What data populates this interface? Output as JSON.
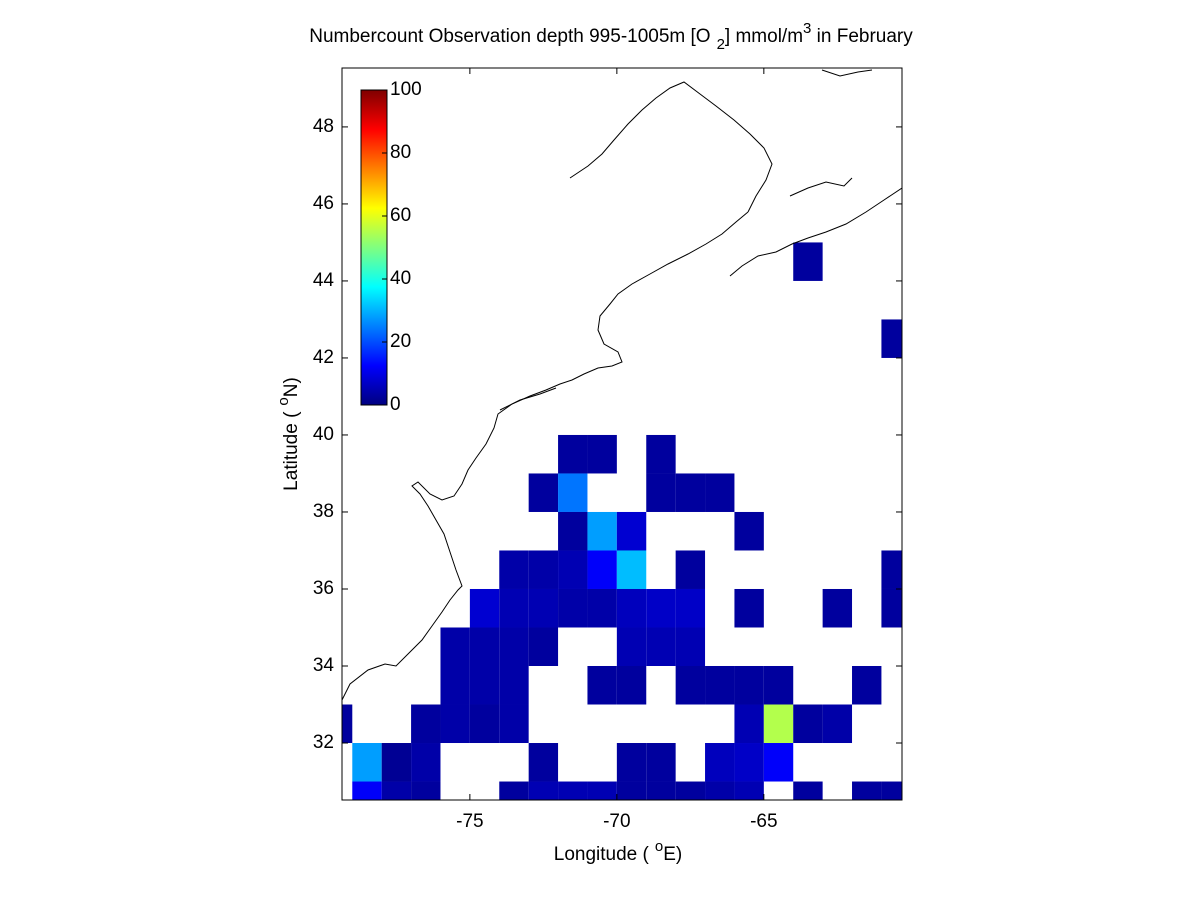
{
  "chart_data": {
    "type": "heatmap",
    "colormap": "jet",
    "title": {
      "prefix": "Numbercount Observation depth 995-1005m [O",
      "sub": "2",
      "mid": "] mmol/m",
      "sup": "3",
      "suffix": " in February"
    },
    "xlabel": {
      "text": "Longitude (",
      "sup": "o",
      "end": "E)"
    },
    "ylabel": {
      "text": "Latitude (",
      "sup": "o",
      "end": "N)"
    },
    "xlim": [
      -79.35,
      -60.3
    ],
    "ylim": [
      30.52,
      49.53
    ],
    "xticks": [
      -75,
      -70,
      -65
    ],
    "yticks": [
      32,
      34,
      36,
      38,
      40,
      42,
      44,
      46,
      48
    ],
    "clim": [
      0,
      100
    ],
    "cticks": [
      0,
      20,
      40,
      60,
      80,
      100
    ],
    "x": [
      -64,
      -61,
      -72,
      -71,
      -69,
      -73,
      -72,
      -69,
      -68,
      -67,
      -72,
      -71,
      -70,
      -66,
      -74,
      -73,
      -72,
      -71,
      -70,
      -68,
      -61,
      -75,
      -74,
      -73,
      -72,
      -71,
      -70,
      -69,
      -68,
      -66,
      -63,
      -61,
      -76,
      -75,
      -74,
      -73,
      -70,
      -69,
      -68,
      -76,
      -75,
      -74,
      -71,
      -70,
      -68,
      -67,
      -66,
      -65,
      -62,
      -80,
      -77,
      -76,
      -75,
      -74,
      -66,
      -65,
      -64,
      -63,
      -79,
      -78,
      -77,
      -73,
      -70,
      -69,
      -67,
      -66,
      -65,
      -79,
      -78,
      -77,
      -74,
      -73,
      -72,
      -71,
      -70,
      -69,
      -68,
      -67,
      -66,
      -64,
      -62,
      -61
    ],
    "y": [
      44,
      42,
      39,
      39,
      39,
      38,
      38,
      38,
      38,
      38,
      37,
      37,
      37,
      37,
      36,
      36,
      36,
      36,
      36,
      36,
      36,
      35,
      35,
      35,
      35,
      35,
      35,
      35,
      35,
      35,
      35,
      35,
      34,
      34,
      34,
      34,
      34,
      34,
      34,
      33,
      33,
      33,
      33,
      33,
      33,
      33,
      33,
      33,
      33,
      32,
      32,
      32,
      32,
      32,
      32,
      32,
      32,
      32,
      31,
      31,
      31,
      31,
      31,
      31,
      31,
      31,
      31,
      30,
      30,
      30,
      30,
      30,
      30,
      30,
      30,
      30,
      30,
      30,
      30,
      30,
      30,
      30
    ],
    "values": [
      3,
      3,
      3,
      3,
      3,
      3,
      24,
      3,
      3,
      3,
      3,
      28,
      8,
      3,
      4,
      4,
      5,
      12,
      31,
      3,
      3,
      8,
      5,
      5,
      4,
      4,
      6,
      7,
      7,
      3,
      3,
      3,
      4,
      4,
      4,
      3,
      5,
      5,
      5,
      4,
      4,
      4,
      3,
      3,
      3,
      3,
      3,
      3,
      3,
      3,
      3,
      4,
      3,
      4,
      5,
      55,
      3,
      4,
      28,
      2,
      4,
      3,
      3,
      3,
      6,
      7,
      12,
      12,
      4,
      3,
      3,
      5,
      5,
      5,
      3,
      3,
      3,
      4,
      5,
      3,
      3,
      3
    ]
  }
}
